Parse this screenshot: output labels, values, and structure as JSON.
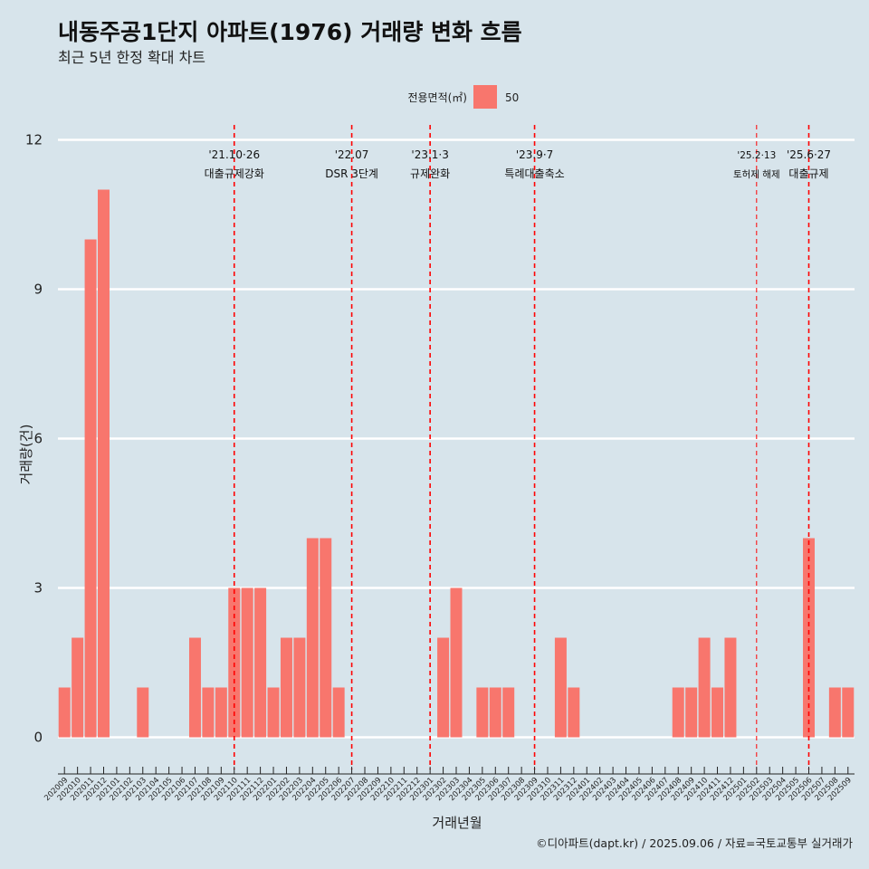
{
  "colors": {
    "background": "#d7e4eb",
    "bar": "#f8766d",
    "grid": "#ffffff",
    "event_line": "#ff0000",
    "axis": "#222222"
  },
  "chart_data": {
    "type": "bar",
    "title": "내동주공1단지 아파트(1976) 거래량 변화 흐름",
    "subtitle": "최근 5년 한정 확대 차트",
    "xlabel": "거래년월",
    "ylabel": "거래량(건)",
    "ylim": [
      -0.5,
      12.3
    ],
    "yticks": [
      0,
      3,
      6,
      9,
      12
    ],
    "grid": true,
    "legend": {
      "title": "전용면적(㎡)",
      "entries": [
        "50"
      ],
      "position": "top"
    },
    "categories": [
      "202009",
      "202010",
      "202011",
      "202012",
      "202101",
      "202102",
      "202103",
      "202104",
      "202105",
      "202106",
      "202107",
      "202108",
      "202109",
      "202110",
      "202111",
      "202112",
      "202201",
      "202202",
      "202203",
      "202204",
      "202205",
      "202206",
      "202207",
      "202208",
      "202209",
      "202210",
      "202211",
      "202212",
      "202301",
      "202302",
      "202303",
      "202304",
      "202305",
      "202306",
      "202307",
      "202308",
      "202309",
      "202310",
      "202311",
      "202312",
      "202401",
      "202402",
      "202403",
      "202404",
      "202405",
      "202406",
      "202407",
      "202408",
      "202409",
      "202410",
      "202411",
      "202412",
      "202501",
      "202502",
      "202503",
      "202504",
      "202505",
      "202506",
      "202507",
      "202508",
      "202509"
    ],
    "series": [
      {
        "name": "50",
        "values": [
          1,
          2,
          10,
          11,
          0,
          0,
          1,
          0,
          0,
          0,
          2,
          1,
          1,
          3,
          3,
          3,
          1,
          2,
          2,
          4,
          4,
          1,
          0,
          0,
          0,
          0,
          0,
          0,
          0,
          2,
          3,
          0,
          1,
          1,
          1,
          0,
          0,
          0,
          2,
          1,
          0,
          0,
          0,
          0,
          0,
          0,
          0,
          1,
          1,
          2,
          1,
          2,
          0,
          0,
          0,
          0,
          0,
          4,
          0,
          1,
          1
        ]
      }
    ],
    "annotations": [
      {
        "category": "202110",
        "date": "'21.10·26",
        "label": "대출규제강화",
        "style": "dashed"
      },
      {
        "category": "202207",
        "date": "'22.07",
        "label": "DSR 3단계",
        "style": "dashed"
      },
      {
        "category": "202301",
        "date": "'23.1·3",
        "label": "규제완화",
        "style": "dashed"
      },
      {
        "category": "202309",
        "date": "'23.9·7",
        "label": "특례대출축소",
        "style": "dashed"
      },
      {
        "category": "202502",
        "date": "'25.2·13",
        "label": "토허제 해제",
        "style": "thin"
      },
      {
        "category": "202506",
        "date": "'25.6·27",
        "label": "대출규제",
        "style": "dashed"
      }
    ]
  },
  "caption": "©디아파트(dapt.kr) / 2025.09.06 / 자료=국토교통부 실거래가"
}
